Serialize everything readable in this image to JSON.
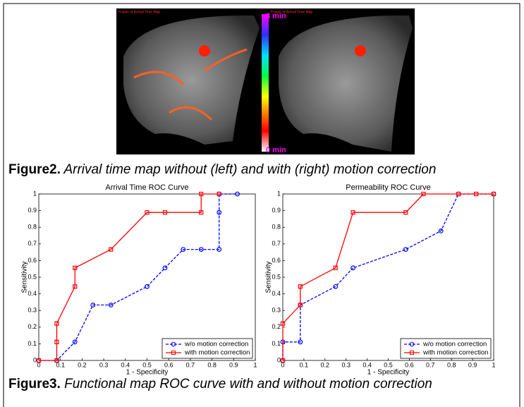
{
  "figure2": {
    "left_label": "Fusion of Arrival Time Map",
    "right_label": "Fusion of Arrival Time Map",
    "colorbar_top": "8 min",
    "colorbar_bottom": "0 min",
    "caption_label": "Figure2.",
    "caption_text": " Arrival time map without (left) and with (right) motion correction"
  },
  "chart_data": [
    {
      "type": "line",
      "title": "Arrival Time ROC Curve",
      "xlabel": "1 - Specificity",
      "ylabel": "Sensitivity",
      "xlim": [
        0,
        1
      ],
      "ylim": [
        0,
        1
      ],
      "xticks": [
        0,
        0.1,
        0.2,
        0.3,
        0.4,
        0.5,
        0.6,
        0.7,
        0.8,
        0.9,
        1
      ],
      "yticks": [
        0,
        0.1,
        0.2,
        0.3,
        0.4,
        0.5,
        0.6,
        0.7,
        0.8,
        0.9,
        1
      ],
      "legend": "lower right",
      "series": [
        {
          "name": "w/o motion correction",
          "color": "#0000ff",
          "linestyle": "dashed",
          "marker": "circle",
          "x": [
            0,
            0.083,
            0.167,
            0.25,
            0.333,
            0.5,
            0.583,
            0.667,
            0.75,
            0.833,
            0.833,
            0.833,
            0.917
          ],
          "values": [
            0,
            0,
            0.111,
            0.333,
            0.333,
            0.444,
            0.556,
            0.667,
            0.667,
            0.667,
            0.889,
            1,
            1
          ]
        },
        {
          "name": "with motion correction",
          "color": "#ff0000",
          "linestyle": "solid",
          "marker": "square",
          "x": [
            0,
            0.083,
            0.083,
            0.083,
            0.167,
            0.167,
            0.333,
            0.5,
            0.583,
            0.75,
            0.75,
            0.833
          ],
          "values": [
            0,
            0,
            0.111,
            0.222,
            0.444,
            0.556,
            0.667,
            0.889,
            0.889,
            0.889,
            1,
            1
          ]
        }
      ]
    },
    {
      "type": "line",
      "title": "Permeability ROC Curve",
      "xlabel": "1 - Specificity",
      "ylabel": "Sensitivity",
      "xlim": [
        0,
        1
      ],
      "ylim": [
        0,
        1
      ],
      "xticks": [
        0,
        0.1,
        0.2,
        0.3,
        0.4,
        0.5,
        0.6,
        0.7,
        0.8,
        0.9,
        1
      ],
      "yticks": [
        0,
        0.1,
        0.2,
        0.3,
        0.4,
        0.5,
        0.6,
        0.7,
        0.8,
        0.9,
        1
      ],
      "legend": "lower right",
      "series": [
        {
          "name": "w/o motion correction",
          "color": "#0000ff",
          "linestyle": "dashed",
          "marker": "circle",
          "x": [
            0,
            0,
            0.083,
            0.083,
            0.25,
            0.333,
            0.583,
            0.75,
            0.833,
            1
          ],
          "values": [
            0,
            0.111,
            0.111,
            0.333,
            0.444,
            0.556,
            0.667,
            0.778,
            1,
            1
          ]
        },
        {
          "name": "with motion correction",
          "color": "#ff0000",
          "linestyle": "solid",
          "marker": "square",
          "x": [
            0,
            0,
            0.083,
            0.083,
            0.25,
            0.333,
            0.583,
            0.667,
            0.833,
            0.917,
            1
          ],
          "values": [
            0,
            0.222,
            0.333,
            0.444,
            0.556,
            0.889,
            0.889,
            1,
            1,
            1,
            1
          ]
        }
      ]
    }
  ],
  "figure3": {
    "caption_label": "Figure3.",
    "caption_text": " Functional map ROC curve with and without motion correction"
  }
}
